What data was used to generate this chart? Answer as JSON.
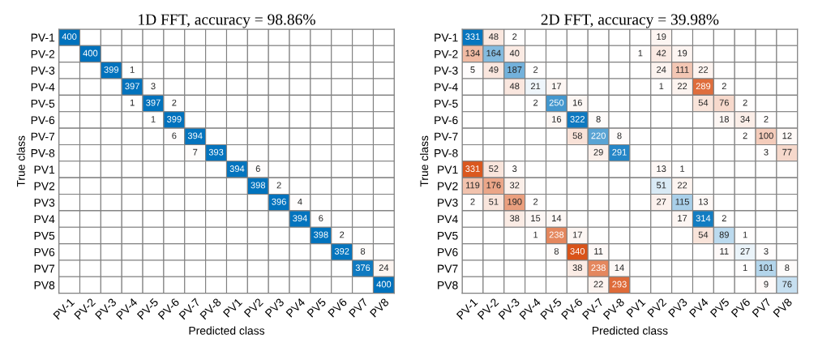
{
  "chart_data": [
    {
      "type": "heatmap",
      "title": "1D FFT, accuracy = 98.86%",
      "xlabel": "Predicted class",
      "ylabel": "True class",
      "colors": [
        "#0072bd",
        "#d95319"
      ],
      "data_labels": true,
      "categories": [
        "PV-1",
        "PV-2",
        "PV-3",
        "PV-4",
        "PV-5",
        "PV-6",
        "PV-7",
        "PV-8",
        "PV1",
        "PV2",
        "PV3",
        "PV4",
        "PV5",
        "PV6",
        "PV7",
        "PV8"
      ],
      "y_categories": [
        "PV-1",
        "PV-2",
        "PV-3",
        "PV-4",
        "PV-5",
        "PV-6",
        "PV-7",
        "PV-8",
        "PV1",
        "PV2",
        "PV3",
        "PV4",
        "PV5",
        "PV6",
        "PV7",
        "PV8"
      ],
      "cells": [
        [
          400,
          null,
          null,
          null,
          null,
          null,
          null,
          null,
          null,
          null,
          null,
          null,
          null,
          null,
          null,
          null
        ],
        [
          null,
          400,
          null,
          null,
          null,
          null,
          null,
          null,
          null,
          null,
          null,
          null,
          null,
          null,
          null,
          null
        ],
        [
          null,
          null,
          399,
          1,
          null,
          null,
          null,
          null,
          null,
          null,
          null,
          null,
          null,
          null,
          null,
          null
        ],
        [
          null,
          null,
          null,
          397,
          3,
          null,
          null,
          null,
          null,
          null,
          null,
          null,
          null,
          null,
          null,
          null
        ],
        [
          null,
          null,
          null,
          1,
          397,
          2,
          null,
          null,
          null,
          null,
          null,
          null,
          null,
          null,
          null,
          null
        ],
        [
          null,
          null,
          null,
          null,
          1,
          399,
          null,
          null,
          null,
          null,
          null,
          null,
          null,
          null,
          null,
          null
        ],
        [
          null,
          null,
          null,
          null,
          null,
          6,
          394,
          null,
          null,
          null,
          null,
          null,
          null,
          null,
          null,
          null
        ],
        [
          null,
          null,
          null,
          null,
          null,
          null,
          7,
          393,
          null,
          null,
          null,
          null,
          null,
          null,
          null,
          null
        ],
        [
          null,
          null,
          null,
          null,
          null,
          null,
          null,
          null,
          394,
          6,
          null,
          null,
          null,
          null,
          null,
          null
        ],
        [
          null,
          null,
          null,
          null,
          null,
          null,
          null,
          null,
          null,
          398,
          2,
          null,
          null,
          null,
          null,
          null
        ],
        [
          null,
          null,
          null,
          null,
          null,
          null,
          null,
          null,
          null,
          null,
          396,
          4,
          null,
          null,
          null,
          null
        ],
        [
          null,
          null,
          null,
          null,
          null,
          null,
          null,
          null,
          null,
          null,
          null,
          394,
          6,
          null,
          null,
          null
        ],
        [
          null,
          null,
          null,
          null,
          null,
          null,
          null,
          null,
          null,
          null,
          null,
          null,
          398,
          2,
          null,
          null
        ],
        [
          null,
          null,
          null,
          null,
          null,
          null,
          null,
          null,
          null,
          null,
          null,
          null,
          null,
          392,
          8,
          null
        ],
        [
          null,
          null,
          null,
          null,
          null,
          null,
          null,
          null,
          null,
          null,
          null,
          null,
          null,
          null,
          376,
          24
        ],
        [
          null,
          null,
          null,
          null,
          null,
          null,
          null,
          null,
          null,
          null,
          null,
          null,
          null,
          null,
          null,
          400
        ]
      ]
    },
    {
      "type": "heatmap",
      "title": "2D FFT, accuracy = 39.98%",
      "xlabel": "Predicted class",
      "ylabel": "True class",
      "colors": [
        "#0072bd",
        "#d95319"
      ],
      "data_labels": true,
      "categories": [
        "PV-1",
        "PV-2",
        "PV-3",
        "PV-4",
        "PV-5",
        "PV-6",
        "PV-7",
        "PV-8",
        "PV1",
        "PV2",
        "PV3",
        "PV4",
        "PV5",
        "PV6",
        "PV7",
        "PV8"
      ],
      "y_categories": [
        "PV-1",
        "PV-2",
        "PV-3",
        "PV-4",
        "PV-5",
        "PV-6",
        "PV-7",
        "PV-8",
        "PV1",
        "PV2",
        "PV3",
        "PV4",
        "PV5",
        "PV6",
        "PV7",
        "PV8"
      ],
      "cells": [
        [
          331,
          48,
          2,
          null,
          null,
          null,
          null,
          null,
          null,
          19,
          null,
          null,
          null,
          null,
          null,
          null
        ],
        [
          134,
          164,
          40,
          null,
          null,
          null,
          null,
          null,
          1,
          42,
          19,
          null,
          null,
          null,
          null,
          null
        ],
        [
          5,
          49,
          187,
          2,
          null,
          null,
          null,
          null,
          null,
          24,
          111,
          22,
          null,
          null,
          null,
          null
        ],
        [
          null,
          null,
          48,
          21,
          17,
          null,
          null,
          null,
          null,
          1,
          22,
          289,
          2,
          null,
          null,
          null
        ],
        [
          null,
          null,
          null,
          2,
          250,
          16,
          null,
          null,
          null,
          null,
          null,
          54,
          76,
          2,
          null,
          null
        ],
        [
          null,
          null,
          null,
          null,
          16,
          322,
          8,
          null,
          null,
          null,
          null,
          null,
          18,
          34,
          2,
          null
        ],
        [
          null,
          null,
          null,
          null,
          null,
          58,
          220,
          8,
          null,
          null,
          null,
          null,
          null,
          2,
          100,
          12
        ],
        [
          null,
          null,
          null,
          null,
          null,
          null,
          29,
          291,
          null,
          null,
          null,
          null,
          null,
          null,
          3,
          77
        ],
        [
          331,
          52,
          3,
          null,
          null,
          null,
          null,
          null,
          null,
          13,
          1,
          null,
          null,
          null,
          null,
          null
        ],
        [
          119,
          176,
          32,
          null,
          null,
          null,
          null,
          null,
          null,
          51,
          22,
          null,
          null,
          null,
          null,
          null
        ],
        [
          2,
          51,
          190,
          2,
          null,
          null,
          null,
          null,
          null,
          27,
          115,
          13,
          null,
          null,
          null,
          null
        ],
        [
          null,
          null,
          38,
          15,
          14,
          null,
          null,
          null,
          null,
          null,
          17,
          314,
          2,
          null,
          null,
          null
        ],
        [
          null,
          null,
          null,
          1,
          238,
          17,
          null,
          null,
          null,
          null,
          null,
          54,
          89,
          1,
          null,
          null
        ],
        [
          null,
          null,
          null,
          null,
          8,
          340,
          11,
          null,
          null,
          null,
          null,
          null,
          11,
          27,
          3,
          null
        ],
        [
          null,
          null,
          null,
          null,
          null,
          38,
          238,
          14,
          null,
          null,
          null,
          null,
          null,
          1,
          101,
          8
        ],
        [
          null,
          null,
          null,
          null,
          null,
          null,
          22,
          293,
          null,
          null,
          null,
          null,
          null,
          null,
          9,
          76
        ]
      ]
    }
  ]
}
